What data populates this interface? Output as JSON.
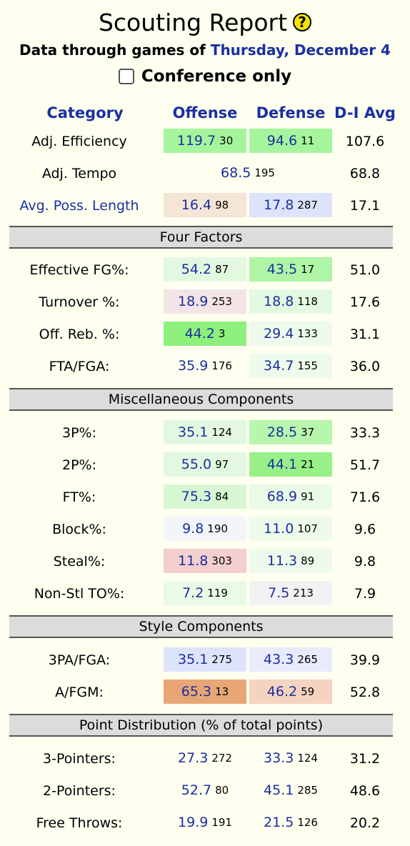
{
  "header": {
    "title": "Scouting Report",
    "subtitle_prefix": "Data through games of",
    "date": "Thursday, December 4",
    "conference_only_label": "Conference only"
  },
  "columns": {
    "category": "Category",
    "offense": "Offense",
    "defense": "Defense",
    "avg": "D-I Avg"
  },
  "basic_rows": [
    {
      "label": "Adj. Efficiency",
      "off": "119.7",
      "off_rank": "30",
      "def": "94.6",
      "def_rank": "11",
      "avg": "107.6"
    },
    {
      "label": "Adj. Tempo",
      "off": "68.5",
      "off_rank": "195",
      "avg": "68.8"
    },
    {
      "label": "Avg. Poss. Length",
      "off": "16.4",
      "off_rank": "98",
      "def": "17.8",
      "def_rank": "287",
      "avg": "17.1"
    }
  ],
  "sections": {
    "four_factors": "Four Factors",
    "misc": "Miscellaneous Components",
    "style": "Style Components",
    "points": "Point Distribution (% of total points)"
  },
  "four_factors": [
    {
      "label": "Effective FG%:",
      "off": "54.2",
      "off_rank": "87",
      "def": "43.5",
      "def_rank": "17",
      "avg": "51.0"
    },
    {
      "label": "Turnover %:",
      "off": "18.9",
      "off_rank": "253",
      "def": "18.8",
      "def_rank": "118",
      "avg": "17.6"
    },
    {
      "label": "Off. Reb. %:",
      "off": "44.2",
      "off_rank": "3",
      "def": "29.4",
      "def_rank": "133",
      "avg": "31.1"
    },
    {
      "label": "FTA/FGA:",
      "off": "35.9",
      "off_rank": "176",
      "def": "34.7",
      "def_rank": "155",
      "avg": "36.0"
    }
  ],
  "misc": [
    {
      "label": "3P%:",
      "off": "35.1",
      "off_rank": "124",
      "def": "28.5",
      "def_rank": "37",
      "avg": "33.3"
    },
    {
      "label": "2P%:",
      "off": "55.0",
      "off_rank": "97",
      "def": "44.1",
      "def_rank": "21",
      "avg": "51.7"
    },
    {
      "label": "FT%:",
      "off": "75.3",
      "off_rank": "84",
      "def": "68.9",
      "def_rank": "91",
      "avg": "71.6"
    },
    {
      "label": "Block%:",
      "off": "9.8",
      "off_rank": "190",
      "def": "11.0",
      "def_rank": "107",
      "avg": "9.6"
    },
    {
      "label": "Steal%:",
      "off": "11.8",
      "off_rank": "303",
      "def": "11.3",
      "def_rank": "89",
      "avg": "9.8"
    },
    {
      "label": "Non-Stl TO%:",
      "off": "7.2",
      "off_rank": "119",
      "def": "7.5",
      "def_rank": "213",
      "avg": "7.9"
    }
  ],
  "style": [
    {
      "label": "3PA/FGA:",
      "off": "35.1",
      "off_rank": "275",
      "def": "43.3",
      "def_rank": "265",
      "avg": "39.9"
    },
    {
      "label": "A/FGM:",
      "off": "65.3",
      "off_rank": "13",
      "def": "46.2",
      "def_rank": "59",
      "avg": "52.8"
    }
  ],
  "points": [
    {
      "label": "3-Pointers:",
      "off": "27.3",
      "off_rank": "272",
      "def": "33.3",
      "def_rank": "124",
      "avg": "31.2"
    },
    {
      "label": "2-Pointers:",
      "off": "52.7",
      "off_rank": "80",
      "def": "45.1",
      "def_rank": "285",
      "avg": "48.6"
    },
    {
      "label": "Free Throws:",
      "off": "19.9",
      "off_rank": "191",
      "def": "21.5",
      "def_rank": "126",
      "avg": "20.2"
    }
  ],
  "colors": {
    "link_blue": "#1a2fa0",
    "background": "#fffff0",
    "section_bg": "#dcdcdc"
  }
}
